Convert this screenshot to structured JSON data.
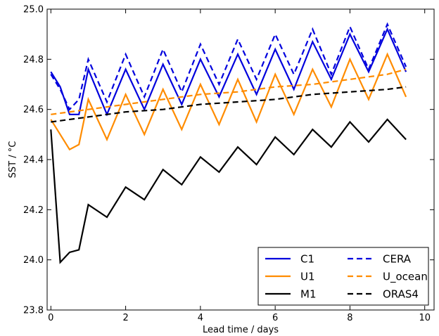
{
  "chart_data": {
    "type": "line",
    "xlabel": "Lead time / days",
    "ylabel": "SST / °C",
    "xlim": [
      -0.1,
      10.25
    ],
    "ylim": [
      23.8,
      25.0
    ],
    "xticks": [
      0,
      2,
      4,
      6,
      8,
      10
    ],
    "yticks": [
      23.8,
      24.0,
      24.2,
      24.4,
      24.6,
      24.8,
      25.0
    ],
    "xtick_labels": [
      "0",
      "2",
      "4",
      "6",
      "8",
      "10"
    ],
    "ytick_labels": [
      "23.8",
      "24.0",
      "24.2",
      "24.4",
      "24.6",
      "24.8",
      "25.0"
    ],
    "grid": false,
    "legend_position": "bottom-right",
    "series": [
      {
        "name": "C1",
        "color": "#0000dd",
        "style": "solid",
        "x": [
          0,
          0.25,
          0.5,
          0.75,
          1,
          1.5,
          2,
          2.5,
          3,
          3.5,
          4,
          4.5,
          5,
          5.5,
          6,
          6.5,
          7,
          7.5,
          8,
          8.5,
          9,
          9.5
        ],
        "y": [
          24.75,
          24.69,
          24.58,
          24.58,
          24.76,
          24.58,
          24.76,
          24.6,
          24.78,
          24.62,
          24.8,
          24.65,
          24.82,
          24.66,
          24.84,
          24.68,
          24.87,
          24.72,
          24.9,
          24.75,
          24.92,
          24.75
        ]
      },
      {
        "name": "U1",
        "color": "#ff8c00",
        "style": "solid",
        "x": [
          0,
          0.25,
          0.5,
          0.75,
          1,
          1.5,
          2,
          2.5,
          3,
          3.5,
          4,
          4.5,
          5,
          5.5,
          6,
          6.5,
          7,
          7.5,
          8,
          8.5,
          9,
          9.5
        ],
        "y": [
          24.56,
          24.5,
          24.44,
          24.46,
          24.64,
          24.48,
          24.66,
          24.5,
          24.68,
          24.52,
          24.7,
          24.54,
          24.72,
          24.55,
          24.74,
          24.58,
          24.76,
          24.61,
          24.8,
          24.64,
          24.82,
          24.65
        ]
      },
      {
        "name": "M1",
        "color": "#000000",
        "style": "solid",
        "x": [
          0,
          0.25,
          0.5,
          0.75,
          1,
          1.5,
          2,
          2.5,
          3,
          3.5,
          4,
          4.5,
          5,
          5.5,
          6,
          6.5,
          7,
          7.5,
          8,
          8.5,
          9,
          9.5
        ],
        "y": [
          24.52,
          23.99,
          24.03,
          24.04,
          24.22,
          24.17,
          24.29,
          24.24,
          24.36,
          24.3,
          24.41,
          24.35,
          24.45,
          24.38,
          24.49,
          24.42,
          24.52,
          24.45,
          24.55,
          24.47,
          24.56,
          24.48
        ]
      },
      {
        "name": "CERA",
        "color": "#0000dd",
        "style": "dashed",
        "x": [
          0,
          0.25,
          0.5,
          0.75,
          1,
          1.5,
          2,
          2.5,
          3,
          3.5,
          4,
          4.5,
          5,
          5.5,
          6,
          6.5,
          7,
          7.5,
          8,
          8.5,
          9,
          9.5
        ],
        "y": [
          24.74,
          24.68,
          24.6,
          24.64,
          24.8,
          24.63,
          24.82,
          24.65,
          24.84,
          24.67,
          24.86,
          24.7,
          24.88,
          24.72,
          24.9,
          24.74,
          24.92,
          24.74,
          24.93,
          24.76,
          24.94,
          24.77
        ]
      },
      {
        "name": "U_ocean",
        "color": "#ff8c00",
        "style": "dashed",
        "x": [
          0,
          1,
          2,
          3,
          4,
          5,
          6,
          7,
          8,
          9,
          9.5
        ],
        "y": [
          24.58,
          24.6,
          24.62,
          24.64,
          24.66,
          24.67,
          24.69,
          24.7,
          24.72,
          24.74,
          24.76
        ]
      },
      {
        "name": "ORAS4",
        "color": "#000000",
        "style": "dashed",
        "x": [
          0,
          1,
          2,
          3,
          4,
          5,
          6,
          7,
          8,
          9,
          9.5
        ],
        "y": [
          24.55,
          24.57,
          24.59,
          24.6,
          24.62,
          24.63,
          24.64,
          24.66,
          24.67,
          24.68,
          24.69
        ]
      }
    ],
    "legend": {
      "columns": [
        [
          "C1",
          "U1",
          "M1"
        ],
        [
          "CERA",
          "U_ocean",
          "ORAS4"
        ]
      ]
    }
  }
}
